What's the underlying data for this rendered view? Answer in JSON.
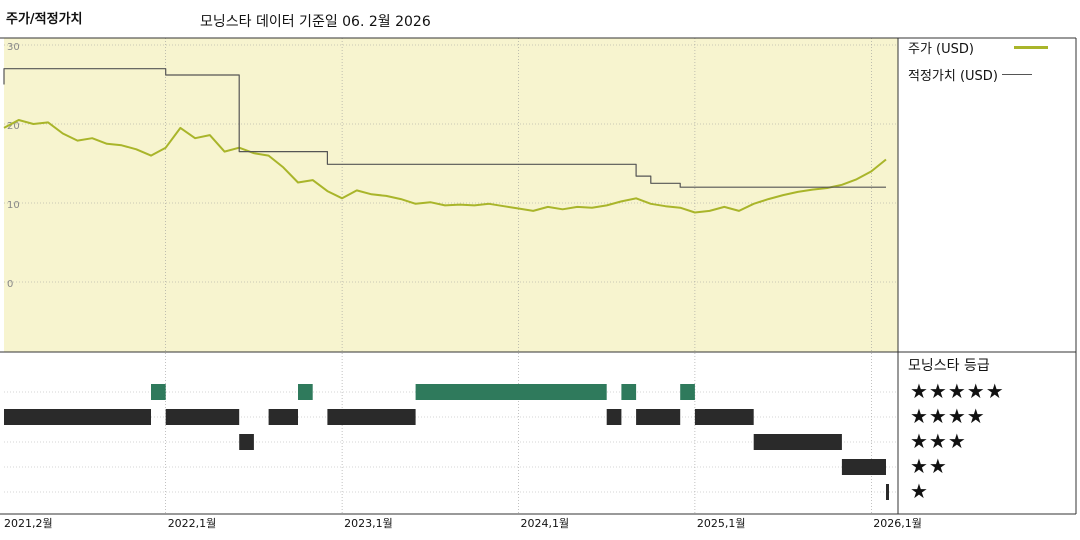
{
  "title": "주가/적정가치",
  "subtitle": "모닝스타 데이터 기준일 06. 2월 2026",
  "chart_data": {
    "type": "line",
    "title": "주가/적정가치",
    "ylim": [
      0,
      30
    ],
    "yticks": [
      "30",
      "20",
      "10",
      "0"
    ],
    "x_tick_labels": [
      "2021,2월",
      "2022,1월",
      "2023,1월",
      "2024,1월",
      "2025,1월",
      "2026,1월"
    ],
    "x_range": [
      "2021-02",
      "2026-02"
    ],
    "grid": true,
    "series": [
      {
        "name": "주가 (USD)",
        "color": "#a9b52a",
        "points": [
          [
            "2021-02",
            19.5
          ],
          [
            "2021-03",
            20.5
          ],
          [
            "2021-04",
            20.0
          ],
          [
            "2021-05",
            20.2
          ],
          [
            "2021-06",
            18.8
          ],
          [
            "2021-07",
            17.9
          ],
          [
            "2021-08",
            18.2
          ],
          [
            "2021-09",
            17.5
          ],
          [
            "2021-10",
            17.3
          ],
          [
            "2021-11",
            16.8
          ],
          [
            "2021-12",
            16.0
          ],
          [
            "2022-01",
            17.0
          ],
          [
            "2022-02",
            19.5
          ],
          [
            "2022-03",
            18.2
          ],
          [
            "2022-04",
            18.6
          ],
          [
            "2022-05",
            16.5
          ],
          [
            "2022-06",
            17.0
          ],
          [
            "2022-07",
            16.3
          ],
          [
            "2022-08",
            16.0
          ],
          [
            "2022-09",
            14.5
          ],
          [
            "2022-10",
            12.6
          ],
          [
            "2022-11",
            12.9
          ],
          [
            "2022-12",
            11.5
          ],
          [
            "2023-01",
            10.6
          ],
          [
            "2023-02",
            11.6
          ],
          [
            "2023-03",
            11.1
          ],
          [
            "2023-04",
            10.9
          ],
          [
            "2023-05",
            10.5
          ],
          [
            "2023-06",
            9.9
          ],
          [
            "2023-07",
            10.1
          ],
          [
            "2023-08",
            9.7
          ],
          [
            "2023-09",
            9.8
          ],
          [
            "2023-10",
            9.7
          ],
          [
            "2023-11",
            9.9
          ],
          [
            "2023-12",
            9.6
          ],
          [
            "2024-01",
            9.3
          ],
          [
            "2024-02",
            9.0
          ],
          [
            "2024-03",
            9.5
          ],
          [
            "2024-04",
            9.2
          ],
          [
            "2024-05",
            9.5
          ],
          [
            "2024-06",
            9.4
          ],
          [
            "2024-07",
            9.7
          ],
          [
            "2024-08",
            10.2
          ],
          [
            "2024-09",
            10.6
          ],
          [
            "2024-10",
            9.9
          ],
          [
            "2024-11",
            9.6
          ],
          [
            "2024-12",
            9.4
          ],
          [
            "2025-01",
            8.8
          ],
          [
            "2025-02",
            9.0
          ],
          [
            "2025-03",
            9.5
          ],
          [
            "2025-04",
            9.0
          ],
          [
            "2025-05",
            9.9
          ],
          [
            "2025-06",
            10.5
          ],
          [
            "2025-07",
            11.0
          ],
          [
            "2025-08",
            11.4
          ],
          [
            "2025-09",
            11.7
          ],
          [
            "2025-10",
            11.9
          ],
          [
            "2025-11",
            12.3
          ],
          [
            "2025-12",
            13.0
          ],
          [
            "2026-01",
            14.0
          ],
          [
            "2026-02",
            15.5
          ]
        ]
      },
      {
        "name": "적정가치 (USD)",
        "color": "#555555",
        "points": [
          [
            "2021-02",
            25.0
          ],
          [
            "2021-02",
            27.0
          ],
          [
            "2022-01",
            27.0
          ],
          [
            "2022-01",
            26.2
          ],
          [
            "2022-06",
            26.2
          ],
          [
            "2022-06",
            16.5
          ],
          [
            "2022-12",
            16.5
          ],
          [
            "2022-12",
            14.9
          ],
          [
            "2024-09",
            14.9
          ],
          [
            "2024-09",
            13.4
          ],
          [
            "2024-10",
            13.4
          ],
          [
            "2024-10",
            12.5
          ],
          [
            "2024-12",
            12.5
          ],
          [
            "2024-12",
            12.0
          ],
          [
            "2026-02",
            12.0
          ]
        ]
      }
    ],
    "rating_legend_title": "모닝스타 등급",
    "rating_labels": [
      "★★★★★",
      "★★★★",
      "★★★",
      "★★",
      "★"
    ],
    "ratings": [
      {
        "start": "2021-02",
        "end": "2021-12",
        "stars": 4
      },
      {
        "start": "2021-12",
        "end": "2022-01",
        "stars": 5
      },
      {
        "start": "2022-01",
        "end": "2022-06",
        "stars": 4
      },
      {
        "start": "2022-06",
        "end": "2022-07",
        "stars": 3
      },
      {
        "start": "2022-08",
        "end": "2022-10",
        "stars": 4
      },
      {
        "start": "2022-10",
        "end": "2022-11",
        "stars": 5
      },
      {
        "start": "2022-12",
        "end": "2023-06",
        "stars": 4
      },
      {
        "start": "2023-06",
        "end": "2024-07",
        "stars": 5
      },
      {
        "start": "2024-07",
        "end": "2024-08",
        "stars": 4
      },
      {
        "start": "2024-08",
        "end": "2024-09",
        "stars": 5
      },
      {
        "start": "2024-09",
        "end": "2024-12",
        "stars": 4
      },
      {
        "start": "2024-12",
        "end": "2025-01",
        "stars": 5
      },
      {
        "start": "2025-01",
        "end": "2025-05",
        "stars": 4
      },
      {
        "start": "2025-05",
        "end": "2025-11",
        "stars": 3
      },
      {
        "start": "2025-11",
        "end": "2026-02",
        "stars": 2
      },
      {
        "start": "2026-02",
        "end": "2026-02",
        "stars": 1
      }
    ]
  },
  "colors": {
    "plot_background": "#f7f4cf",
    "price_line": "#a9b52a",
    "fair_value_line": "#555555",
    "rating_five_star": "#2f7a5c",
    "rating_other": "#2a2a2a"
  }
}
